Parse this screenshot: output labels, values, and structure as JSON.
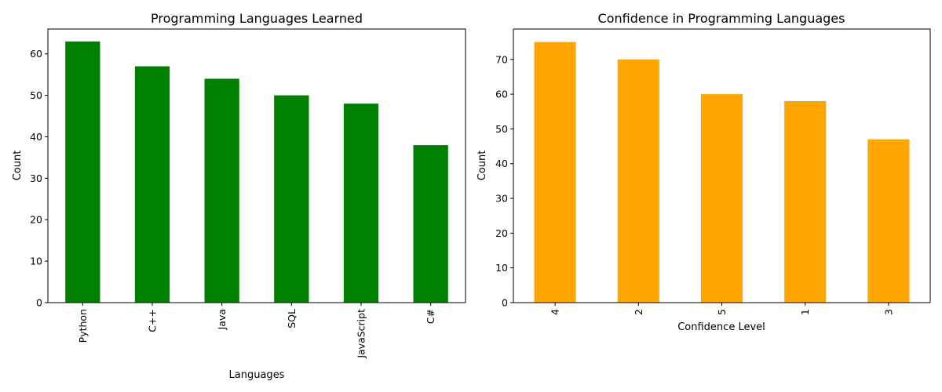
{
  "chart_data": [
    {
      "type": "bar",
      "title": "Programming Languages Learned",
      "xlabel": "Languages",
      "ylabel": "Count",
      "categories": [
        "Python",
        "C++",
        "Java",
        "SQL",
        "JavaScript",
        "C#"
      ],
      "values": [
        63,
        57,
        54,
        50,
        48,
        38
      ],
      "ylim": [
        0,
        66
      ],
      "yticks": [
        0,
        10,
        20,
        30,
        40,
        50,
        60
      ],
      "bar_color": "#008000",
      "x_tick_rotation": "vertical",
      "grid": false,
      "legend": "none"
    },
    {
      "type": "bar",
      "title": "Confidence in Programming Languages",
      "xlabel": "Confidence Level",
      "ylabel": "Count",
      "categories": [
        "4",
        "2",
        "5",
        "1",
        "3"
      ],
      "values": [
        75,
        70,
        60,
        58,
        47
      ],
      "ylim": [
        0,
        78.75
      ],
      "yticks": [
        0,
        10,
        20,
        30,
        40,
        50,
        60,
        70
      ],
      "bar_color": "#FFA500",
      "x_tick_rotation": "vertical",
      "grid": false,
      "legend": "none"
    }
  ]
}
